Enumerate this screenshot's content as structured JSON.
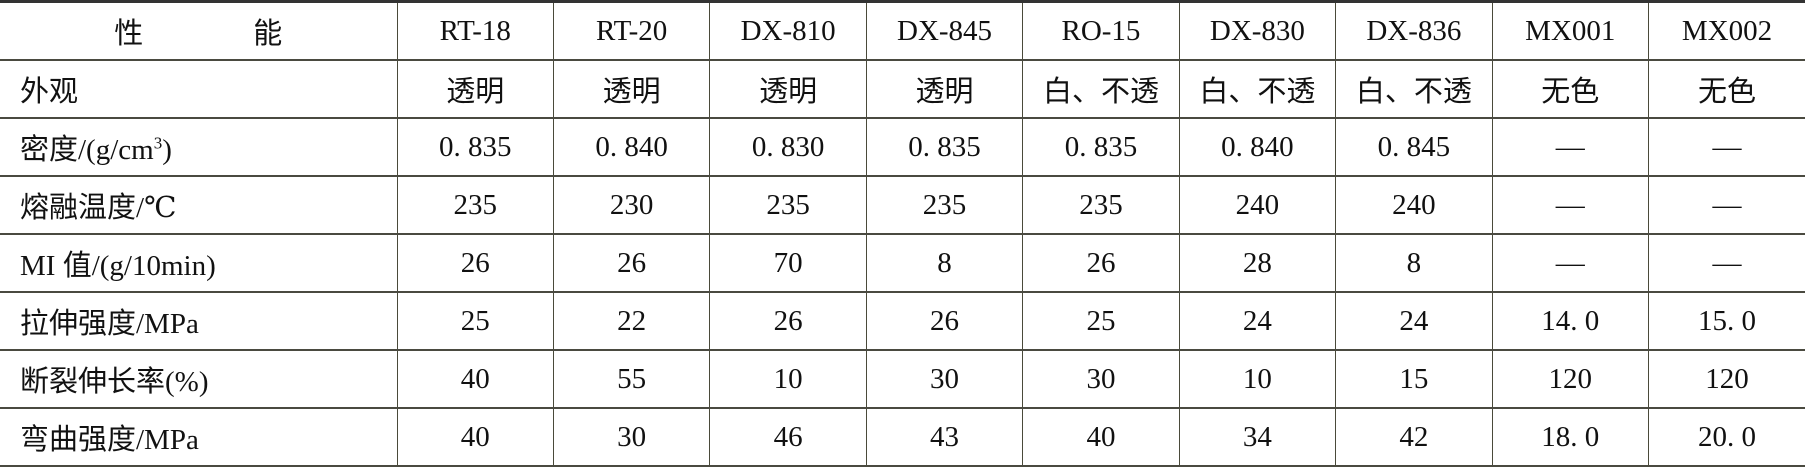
{
  "header": {
    "property_label_a": "性",
    "property_label_b": "能",
    "columns": [
      "RT-18",
      "RT-20",
      "DX-810",
      "DX-845",
      "RO-15",
      "DX-830",
      "DX-836",
      "MX001",
      "MX002"
    ]
  },
  "rows": [
    {
      "label": "外观",
      "values": [
        "透明",
        "透明",
        "透明",
        "透明",
        "白、不透",
        "白、不透",
        "白、不透",
        "无色",
        "无色"
      ]
    },
    {
      "label": "密度/(g/cm",
      "label_sup": "3",
      "label_end": ")",
      "values": [
        "0. 835",
        "0. 840",
        "0. 830",
        "0. 835",
        "0. 835",
        "0. 840",
        "0. 845",
        "—",
        "—"
      ]
    },
    {
      "label": "熔融温度/℃",
      "values": [
        "235",
        "230",
        "235",
        "235",
        "235",
        "240",
        "240",
        "—",
        "—"
      ]
    },
    {
      "label": "MI 值/(g/10min)",
      "values": [
        "26",
        "26",
        "70",
        "8",
        "26",
        "28",
        "8",
        "—",
        "—"
      ]
    },
    {
      "label": "拉伸强度/MPa",
      "values": [
        "25",
        "22",
        "26",
        "26",
        "25",
        "24",
        "24",
        "14. 0",
        "15. 0"
      ]
    },
    {
      "label": "断裂伸长率(%)",
      "values": [
        "40",
        "55",
        "10",
        "30",
        "30",
        "10",
        "15",
        "120",
        "120"
      ]
    },
    {
      "label": "弯曲强度/MPa",
      "values": [
        "40",
        "30",
        "46",
        "43",
        "40",
        "34",
        "42",
        "18. 0",
        "20. 0"
      ]
    }
  ]
}
